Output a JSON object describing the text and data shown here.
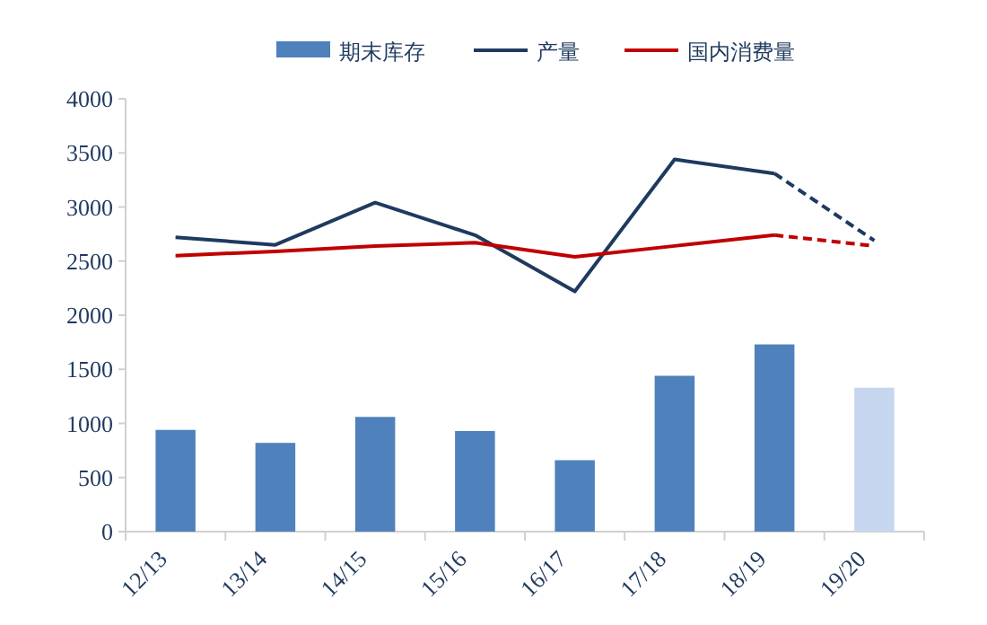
{
  "chart_data": {
    "type": "bar",
    "categories": [
      "12/13",
      "13/14",
      "14/15",
      "15/16",
      "16/17",
      "17/18",
      "18/19",
      "19/20"
    ],
    "series": [
      {
        "name": "期末库存",
        "colors": [
          "#4f81bd",
          "#4f81bd",
          "#4f81bd",
          "#4f81bd",
          "#4f81bd",
          "#4f81bd",
          "#4f81bd",
          "#c6d6ee"
        ],
        "values": [
          940,
          820,
          1060,
          930,
          660,
          1440,
          1730,
          1330
        ]
      },
      {
        "name": "产量",
        "type": "line",
        "color": "#1f3a5f",
        "line_style": "solid",
        "values": [
          2720,
          2650,
          3040,
          2740,
          2220,
          3440,
          3310,
          null
        ]
      },
      {
        "name": "国内消费量",
        "type": "line",
        "color": "#c00000",
        "line_style": "solid",
        "values": [
          2550,
          2590,
          2640,
          2670,
          2540,
          2640,
          2740,
          null
        ]
      },
      {
        "type": "line",
        "color": "#1f3a5f",
        "line_style": "dashed",
        "values": [
          null,
          null,
          null,
          null,
          null,
          null,
          3310,
          2690
        ]
      },
      {
        "type": "line",
        "color": "#c00000",
        "line_style": "dashed",
        "values": [
          null,
          null,
          null,
          null,
          null,
          null,
          2740,
          2640
        ]
      }
    ],
    "ylim": [
      0,
      4000
    ],
    "yticks": [
      0,
      500,
      1000,
      1500,
      2000,
      2500,
      3000,
      3500,
      4000
    ],
    "grid": false,
    "legend": "top"
  }
}
